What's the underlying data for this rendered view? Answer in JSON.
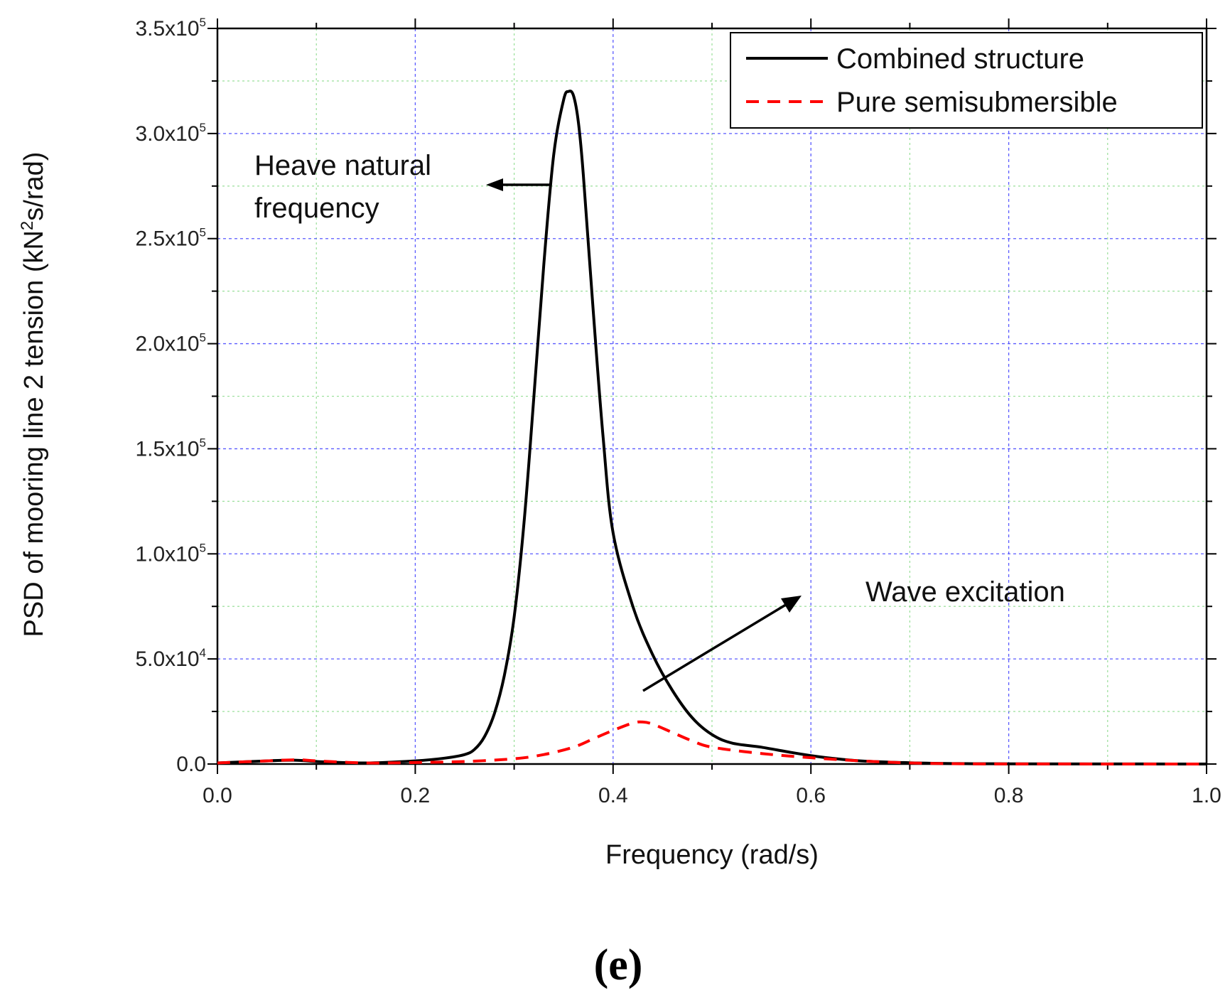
{
  "chart_data": {
    "type": "line",
    "xlabel": "Frequency (rad/s)",
    "ylabel": {
      "prefix": "PSD of mooring line 2 tension (kN",
      "sup": "2",
      "suffix": "s/rad)"
    },
    "xlim": [
      0.0,
      1.0
    ],
    "ylim": [
      0,
      350000
    ],
    "grid": true,
    "legend_position": "top-right",
    "x_ticks": [
      {
        "value": 0.0,
        "label": "0.0"
      },
      {
        "value": 0.2,
        "label": "0.2"
      },
      {
        "value": 0.4,
        "label": "0.4"
      },
      {
        "value": 0.6,
        "label": "0.6"
      },
      {
        "value": 0.8,
        "label": "0.8"
      },
      {
        "value": 1.0,
        "label": "1.0"
      }
    ],
    "y_ticks": [
      {
        "value": 0,
        "label": "0.0",
        "exp": ""
      },
      {
        "value": 50000,
        "label": "5.0x10",
        "exp": "4"
      },
      {
        "value": 100000,
        "label": "1.0x10",
        "exp": "5"
      },
      {
        "value": 150000,
        "label": "1.5x10",
        "exp": "5"
      },
      {
        "value": 200000,
        "label": "2.0x10",
        "exp": "5"
      },
      {
        "value": 250000,
        "label": "2.5x10",
        "exp": "5"
      },
      {
        "value": 300000,
        "label": "3.0x10",
        "exp": "5"
      },
      {
        "value": 350000,
        "label": "3.5x10",
        "exp": "5"
      }
    ],
    "series": [
      {
        "name": "Combined structure",
        "color": "#000000",
        "style": "solid",
        "x": [
          0.0,
          0.05,
          0.08,
          0.1,
          0.15,
          0.2,
          0.23,
          0.25,
          0.26,
          0.27,
          0.28,
          0.29,
          0.3,
          0.31,
          0.32,
          0.33,
          0.34,
          0.35,
          0.355,
          0.36,
          0.365,
          0.37,
          0.38,
          0.39,
          0.4,
          0.42,
          0.44,
          0.46,
          0.48,
          0.5,
          0.52,
          0.55,
          0.58,
          0.6,
          0.62,
          0.65,
          0.7,
          0.75,
          0.8,
          0.9,
          1.0
        ],
        "y": [
          500,
          1500,
          1800,
          1200,
          500,
          1500,
          2800,
          4500,
          7000,
          13000,
          24000,
          42000,
          70000,
          115000,
          175000,
          238000,
          290000,
          316000,
          320000,
          318000,
          305000,
          280000,
          215000,
          155000,
          110000,
          75000,
          52000,
          35000,
          22000,
          14000,
          10000,
          8000,
          5500,
          4000,
          2800,
          1500,
          600,
          200,
          100,
          50,
          0
        ]
      },
      {
        "name": "Pure semisubmersible",
        "color": "#ff0000",
        "style": "dashed",
        "x": [
          0.0,
          0.05,
          0.08,
          0.1,
          0.15,
          0.2,
          0.25,
          0.3,
          0.33,
          0.36,
          0.38,
          0.4,
          0.42,
          0.43,
          0.44,
          0.46,
          0.48,
          0.5,
          0.55,
          0.6,
          0.65,
          0.7,
          0.75,
          0.8,
          1.0
        ],
        "y": [
          500,
          1500,
          2000,
          1500,
          500,
          700,
          1200,
          2500,
          4500,
          8000,
          12000,
          16000,
          19500,
          20000,
          19000,
          15000,
          11000,
          8000,
          5000,
          3000,
          1500,
          500,
          150,
          50,
          0
        ]
      }
    ],
    "annotations": [
      {
        "lines": [
          "Heave natural",
          "frequency"
        ]
      },
      {
        "lines": [
          "Wave excitation"
        ]
      }
    ]
  },
  "caption": "(e)"
}
